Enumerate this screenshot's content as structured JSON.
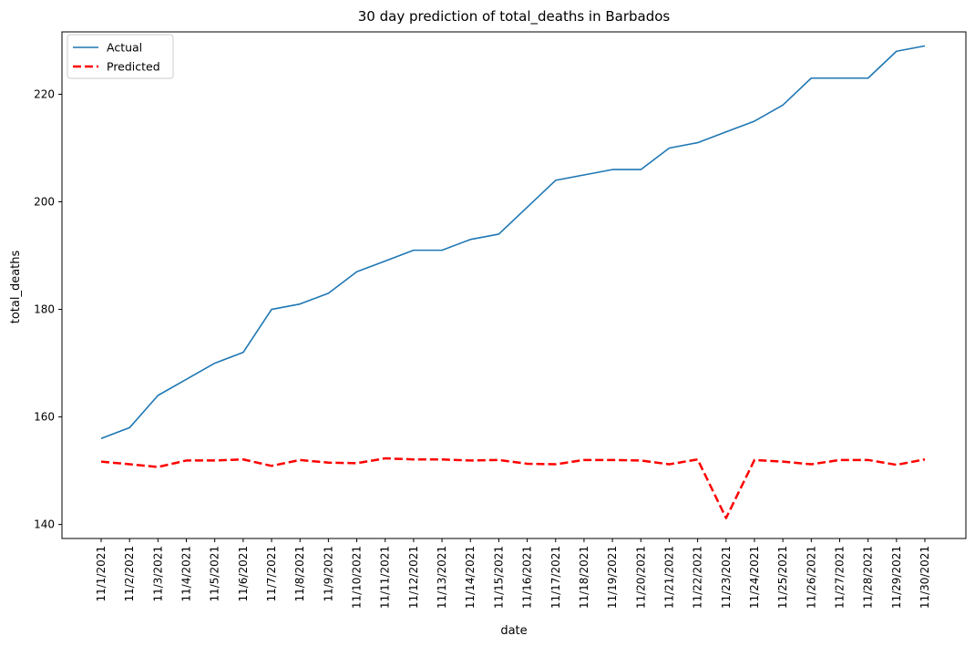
{
  "chart_data": {
    "type": "line",
    "title": "30 day prediction of total_deaths in Barbados",
    "xlabel": "date",
    "ylabel": "total_deaths",
    "categories": [
      "11/1/2021",
      "11/2/2021",
      "11/3/2021",
      "11/4/2021",
      "11/5/2021",
      "11/6/2021",
      "11/7/2021",
      "11/8/2021",
      "11/9/2021",
      "11/10/2021",
      "11/11/2021",
      "11/12/2021",
      "11/13/2021",
      "11/14/2021",
      "11/15/2021",
      "11/16/2021",
      "11/17/2021",
      "11/18/2021",
      "11/19/2021",
      "11/20/2021",
      "11/21/2021",
      "11/22/2021",
      "11/23/2021",
      "11/24/2021",
      "11/25/2021",
      "11/26/2021",
      "11/27/2021",
      "11/28/2021",
      "11/29/2021",
      "11/30/2021"
    ],
    "ylim": [
      137.4,
      231.6
    ],
    "yticks": [
      140,
      160,
      180,
      200,
      220
    ],
    "grid": false,
    "legend_position": "top-left",
    "series": [
      {
        "name": "Actual",
        "color": "#1f77b4",
        "style": "solid",
        "values": [
          156,
          158,
          164,
          167,
          170,
          172,
          180,
          181,
          183,
          187,
          189,
          191,
          191,
          193,
          194,
          199,
          204,
          205,
          206,
          206,
          210,
          211,
          213,
          215,
          218,
          223,
          223,
          223,
          228,
          229
        ]
      },
      {
        "name": "Predicted",
        "color": "#ff0000",
        "style": "dashed",
        "values": [
          151.7,
          151.2,
          150.7,
          151.9,
          151.9,
          152.1,
          150.9,
          152.0,
          151.5,
          151.4,
          152.3,
          152.1,
          152.1,
          151.9,
          152.0,
          151.3,
          151.2,
          152.0,
          152.0,
          151.9,
          151.2,
          152.1,
          141.2,
          152.0,
          151.7,
          151.2,
          152.0,
          152.0,
          151.1,
          152.1
        ]
      }
    ]
  }
}
